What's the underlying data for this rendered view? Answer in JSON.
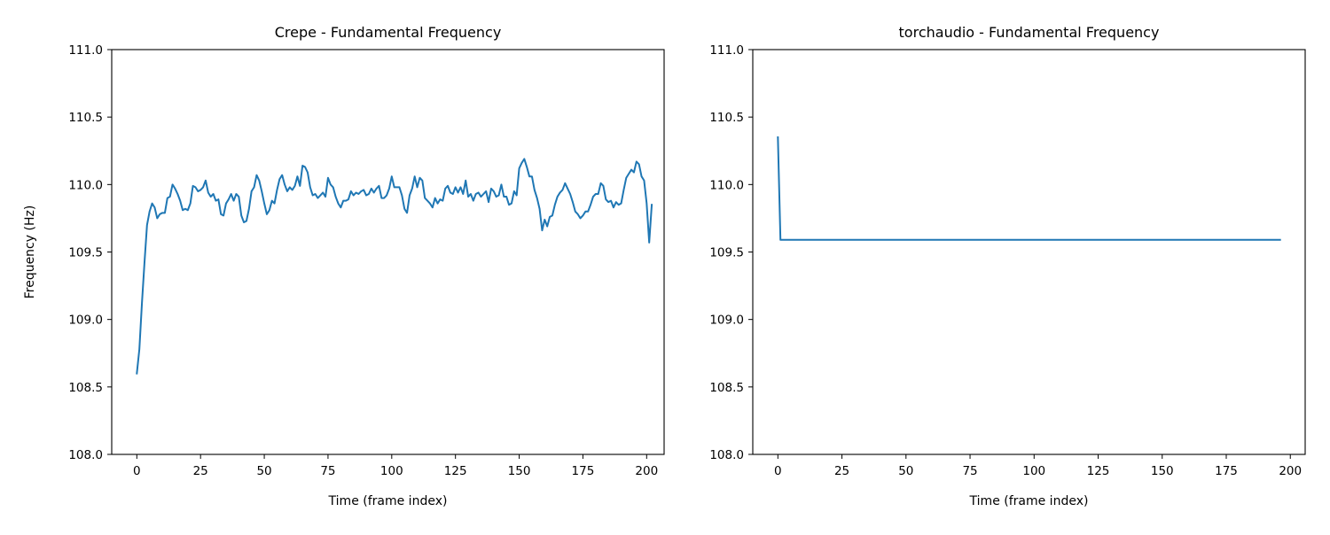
{
  "chart_data": [
    {
      "type": "line",
      "title": "Crepe - Fundamental Frequency",
      "xlabel": "Time (frame index)",
      "ylabel": "Frequency (Hz)",
      "xlim": [
        -9.85,
        206.85
      ],
      "ylim": [
        108.0,
        111.0
      ],
      "xticks": [
        0,
        25,
        50,
        75,
        100,
        125,
        150,
        175,
        200
      ],
      "yticks": [
        108.0,
        108.5,
        109.0,
        109.5,
        110.0,
        110.5,
        111.0
      ],
      "xtick_labels": [
        "0",
        "25",
        "50",
        "75",
        "100",
        "125",
        "150",
        "175",
        "200"
      ],
      "ytick_labels": [
        "108.0",
        "108.5",
        "109.0",
        "109.5",
        "110.0",
        "110.5",
        "111.0"
      ],
      "grid": false,
      "series": [
        {
          "color": "#1f77b4",
          "y": [
            108.6,
            108.78,
            109.12,
            109.42,
            109.7,
            109.8,
            109.86,
            109.83,
            109.75,
            109.78,
            109.79,
            109.79,
            109.9,
            109.91,
            110.0,
            109.97,
            109.93,
            109.88,
            109.81,
            109.82,
            109.81,
            109.86,
            109.99,
            109.98,
            109.95,
            109.96,
            109.98,
            110.03,
            109.94,
            109.91,
            109.93,
            109.88,
            109.89,
            109.78,
            109.77,
            109.86,
            109.89,
            109.93,
            109.88,
            109.93,
            109.91,
            109.77,
            109.72,
            109.73,
            109.82,
            109.95,
            109.98,
            110.07,
            110.03,
            109.95,
            109.86,
            109.78,
            109.81,
            109.88,
            109.86,
            109.96,
            110.04,
            110.07,
            110.0,
            109.95,
            109.98,
            109.96,
            109.99,
            110.06,
            109.99,
            110.14,
            110.13,
            110.09,
            109.98,
            109.92,
            109.93,
            109.9,
            109.92,
            109.94,
            109.91,
            110.05,
            110.0,
            109.98,
            109.91,
            109.86,
            109.83,
            109.88,
            109.88,
            109.89,
            109.95,
            109.92,
            109.94,
            109.93,
            109.95,
            109.96,
            109.92,
            109.93,
            109.97,
            109.94,
            109.97,
            109.99,
            109.9,
            109.9,
            109.92,
            109.97,
            110.06,
            109.98,
            109.98,
            109.98,
            109.92,
            109.82,
            109.79,
            109.92,
            109.97,
            110.06,
            109.98,
            110.05,
            110.03,
            109.9,
            109.88,
            109.86,
            109.83,
            109.9,
            109.86,
            109.89,
            109.88,
            109.97,
            109.99,
            109.94,
            109.93,
            109.98,
            109.94,
            109.98,
            109.93,
            110.03,
            109.91,
            109.93,
            109.88,
            109.93,
            109.94,
            109.91,
            109.93,
            109.95,
            109.87,
            109.97,
            109.95,
            109.91,
            109.92,
            110.0,
            109.91,
            109.91,
            109.85,
            109.86,
            109.95,
            109.92,
            110.12,
            110.16,
            110.19,
            110.13,
            110.06,
            110.06,
            109.96,
            109.9,
            109.82,
            109.66,
            109.74,
            109.69,
            109.76,
            109.77,
            109.85,
            109.91,
            109.94,
            109.96,
            110.01,
            109.97,
            109.93,
            109.87,
            109.8,
            109.78,
            109.75,
            109.77,
            109.8,
            109.8,
            109.85,
            109.91,
            109.93,
            109.93,
            110.01,
            109.99,
            109.89,
            109.87,
            109.88,
            109.83,
            109.87,
            109.85,
            109.86,
            109.96,
            110.05,
            110.08,
            110.11,
            110.09,
            110.17,
            110.15,
            110.06,
            110.03,
            109.86,
            109.57,
            109.85
          ]
        }
      ]
    },
    {
      "type": "line",
      "title": "torchaudio - Fundamental Frequency",
      "xlabel": "Time (frame index)",
      "ylabel": "",
      "xlim": [
        -9.8,
        205.8
      ],
      "ylim": [
        108.0,
        111.0
      ],
      "xticks": [
        0,
        25,
        50,
        75,
        100,
        125,
        150,
        175,
        200
      ],
      "yticks": [
        108.0,
        108.5,
        109.0,
        109.5,
        110.0,
        110.5,
        111.0
      ],
      "xtick_labels": [
        "0",
        "25",
        "50",
        "75",
        "100",
        "125",
        "150",
        "175",
        "200"
      ],
      "ytick_labels": [
        "108.0",
        "108.5",
        "109.0",
        "109.5",
        "110.0",
        "110.5",
        "111.0"
      ],
      "grid": false,
      "series": [
        {
          "color": "#1f77b4",
          "x": [
            0,
            1,
            196
          ],
          "y": [
            110.35,
            109.59,
            109.59
          ]
        }
      ]
    }
  ]
}
